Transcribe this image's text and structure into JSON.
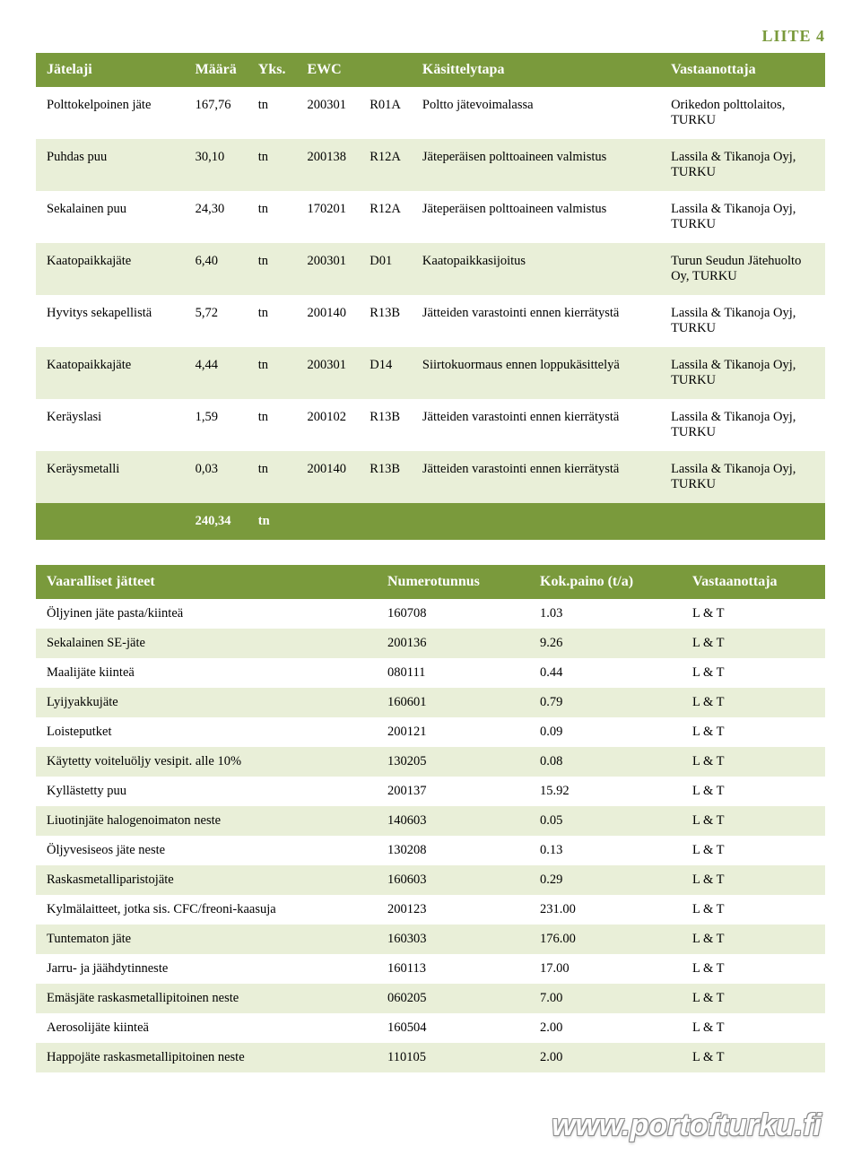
{
  "liite_label": "LIITE 4",
  "t1": {
    "headers": {
      "jatelaji": "Jätelaji",
      "maara": "Määrä",
      "yks": "Yks.",
      "ewc": "EWC",
      "kasittelytapa": "Käsittelytapa",
      "vastaanottaja": "Vastaanottaja"
    },
    "rows": [
      {
        "stripe": false,
        "c": [
          "Polttokelpoinen jäte",
          "167,76",
          "tn",
          "200301",
          "R01A",
          "Poltto jätevoimalassa",
          "Orikedon polttolaitos, TURKU"
        ]
      },
      {
        "stripe": true,
        "c": [
          "Puhdas puu",
          "30,10",
          "tn",
          "200138",
          "R12A",
          "Jäteperäisen polttoaineen valmistus",
          "Lassila & Tikanoja Oyj, TURKU"
        ]
      },
      {
        "stripe": false,
        "c": [
          "Sekalainen puu",
          "24,30",
          "tn",
          "170201",
          "R12A",
          "Jäteperäisen polttoaineen valmistus",
          "Lassila & Tikanoja Oyj, TURKU"
        ]
      },
      {
        "stripe": true,
        "c": [
          "Kaatopaikkajäte",
          "6,40",
          "tn",
          "200301",
          "D01",
          "Kaatopaikkasijoitus",
          "Turun Seudun Jätehuolto Oy, TURKU"
        ]
      },
      {
        "stripe": false,
        "c": [
          "Hyvitys sekapellistä",
          "5,72",
          "tn",
          "200140",
          "R13B",
          "Jätteiden varastointi ennen kierrätystä",
          "Lassila & Tikanoja Oyj, TURKU"
        ]
      },
      {
        "stripe": true,
        "c": [
          "Kaatopaikkajäte",
          "4,44",
          "tn",
          "200301",
          "D14",
          "Siirtokuormaus ennen loppukäsittelyä",
          "Lassila & Tikanoja Oyj, TURKU"
        ]
      },
      {
        "stripe": false,
        "c": [
          "Keräyslasi",
          "1,59",
          "tn",
          "200102",
          "R13B",
          "Jätteiden varastointi ennen kierrätystä",
          "Lassila & Tikanoja Oyj, TURKU"
        ]
      },
      {
        "stripe": true,
        "c": [
          "Keräysmetalli",
          "0,03",
          "tn",
          "200140",
          "R13B",
          "Jätteiden varastointi ennen kierrätystä",
          "Lassila & Tikanoja Oyj, TURKU"
        ]
      }
    ],
    "total": {
      "maara": "240,34",
      "yks": "tn"
    }
  },
  "t2": {
    "headers": {
      "name": "Vaaralliset jätteet",
      "num": "Numerotunnus",
      "wt": "Kok.paino (t/a)",
      "rec": "Vastaanottaja"
    },
    "rows": [
      {
        "stripe": false,
        "c": [
          "Öljyinen jäte pasta/kiinteä",
          "160708",
          "1.03",
          "L & T"
        ]
      },
      {
        "stripe": true,
        "c": [
          "Sekalainen SE-jäte",
          "200136",
          "9.26",
          "L & T"
        ]
      },
      {
        "stripe": false,
        "c": [
          "Maalijäte kiinteä",
          "080111",
          "0.44",
          "L & T"
        ]
      },
      {
        "stripe": true,
        "c": [
          "Lyijyakkujäte",
          "160601",
          "0.79",
          "L & T"
        ]
      },
      {
        "stripe": false,
        "c": [
          "Loisteputket",
          "200121",
          "0.09",
          "L & T"
        ]
      },
      {
        "stripe": true,
        "c": [
          "Käytetty voiteluöljy vesipit. alle 10%",
          "130205",
          "0.08",
          "L & T"
        ]
      },
      {
        "stripe": false,
        "c": [
          "Kyllästetty puu",
          "200137",
          "15.92",
          "L & T"
        ]
      },
      {
        "stripe": true,
        "c": [
          "Liuotinjäte halogenoimaton neste",
          "140603",
          "0.05",
          "L & T"
        ]
      },
      {
        "stripe": false,
        "c": [
          "Öljyvesiseos jäte neste",
          "130208",
          "0.13",
          "L & T"
        ]
      },
      {
        "stripe": true,
        "c": [
          "Raskasmetalliparistojäte",
          "160603",
          "0.29",
          "L & T"
        ]
      },
      {
        "stripe": false,
        "c": [
          "Kylmälaitteet, jotka sis. CFC/freoni-kaasuja",
          "200123",
          "231.00",
          "L & T"
        ]
      },
      {
        "stripe": true,
        "c": [
          "Tuntematon jäte",
          "160303",
          "176.00",
          "L & T"
        ]
      },
      {
        "stripe": false,
        "c": [
          "Jarru- ja jäähdytinneste",
          "160113",
          "17.00",
          "L & T"
        ]
      },
      {
        "stripe": true,
        "c": [
          "Emäsjäte raskasmetallipitoinen neste",
          "060205",
          "7.00",
          "L & T"
        ]
      },
      {
        "stripe": false,
        "c": [
          "Aerosolijäte kiinteä",
          "160504",
          "2.00",
          "L & T"
        ]
      },
      {
        "stripe": true,
        "c": [
          "Happojäte raskasmetallipitoinen neste",
          "110105",
          "2.00",
          "L & T"
        ]
      }
    ]
  },
  "footer_url": "www.portofturku.fi",
  "style": {
    "accent_color": "#7a9a3c",
    "stripe_color": "#e9efd8",
    "background_color": "#ffffff",
    "text_color": "#000000",
    "header_text_color": "#ffffff",
    "body_font": "Minion Pro / Georgia serif",
    "footer_font": "Arial bold italic",
    "table1_fontsize_pt": 11,
    "header_fontsize_pt": 12,
    "footer_fontsize_pt": 26
  }
}
